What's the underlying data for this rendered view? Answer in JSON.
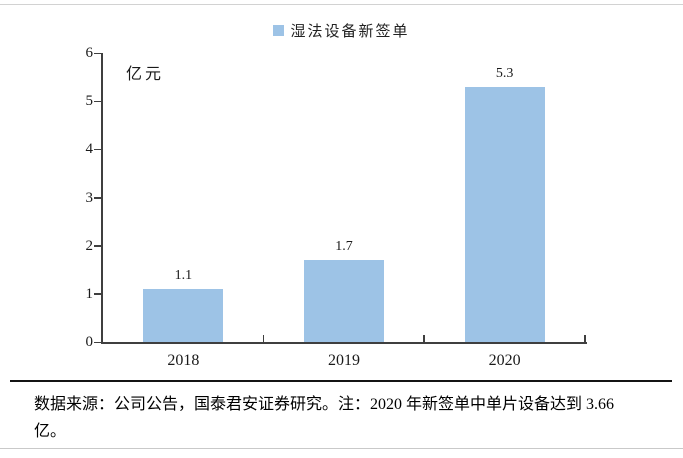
{
  "legend": {
    "label": "湿法设备新签单"
  },
  "chart_data": {
    "type": "bar",
    "title": "",
    "series_name": "湿法设备新签单",
    "categories": [
      "2018",
      "2019",
      "2020"
    ],
    "values": [
      1.1,
      1.7,
      5.3
    ],
    "value_labels": [
      "1.1",
      "1.7",
      "5.3"
    ],
    "unit_label": "亿元",
    "ylim": [
      0,
      6
    ],
    "yticks": [
      0,
      1,
      2,
      3,
      4,
      5,
      6
    ],
    "grid": false,
    "legend_position": "top-center",
    "bar_color": "#9DC3E6"
  },
  "footer": {
    "source_note_lines": [
      "数据来源：公司公告，国泰君安证券研究。注：2020 年新签单中单片设备达到 3.66",
      "亿。"
    ]
  },
  "colors": {
    "bar": "#9DC3E6",
    "axis": "#3f3f3f",
    "separator": "#141414",
    "page_rule": "#d2d2d2"
  }
}
